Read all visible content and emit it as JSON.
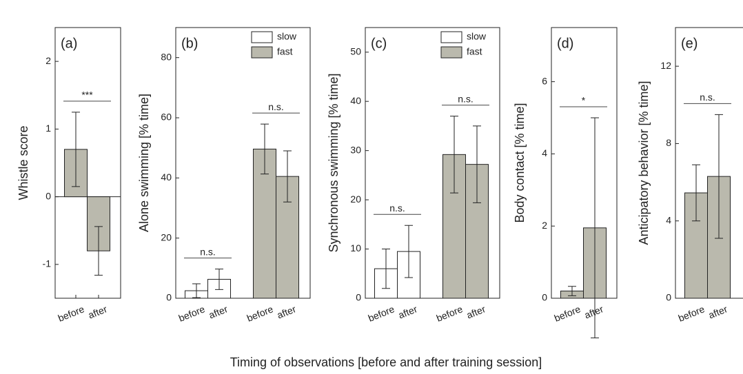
{
  "xlabel": "Timing of observations [before and after training session]",
  "chart_data": [
    {
      "type": "bar",
      "label": "(a)",
      "ylabel": "Whistle score",
      "categories": [
        "before",
        "after"
      ],
      "values": [
        0.7,
        -0.8
      ],
      "errors": [
        0.55,
        0.36
      ],
      "color": "#bab9ad",
      "ylim": [
        -1.5,
        2.5
      ],
      "yticks": [
        -1,
        0,
        1,
        2
      ],
      "zero_line": true,
      "annotations": [
        "***"
      ]
    },
    {
      "type": "bar",
      "label": "(b)",
      "ylabel": "Alone swimming  [% time]",
      "categories": [
        "before",
        "after",
        "before",
        "after"
      ],
      "series": [
        {
          "name": "slow",
          "color": "#ffffff",
          "values": [
            2.5,
            6.3,
            null,
            null
          ],
          "errors": [
            2.3,
            3.4,
            null,
            null
          ]
        },
        {
          "name": "fast",
          "color": "#bab9ad",
          "values": [
            null,
            null,
            49.6,
            40.5
          ],
          "errors": [
            null,
            null,
            8.3,
            8.5
          ]
        }
      ],
      "ylim": [
        0,
        90
      ],
      "yticks": [
        0,
        20,
        40,
        60,
        80
      ],
      "legend": "upper right",
      "annotations": [
        "n.s.",
        "n.s."
      ]
    },
    {
      "type": "bar",
      "label": "(c)",
      "ylabel": "Synchronous swimming  [% time]",
      "categories": [
        "before",
        "after",
        "before",
        "after"
      ],
      "series": [
        {
          "name": "slow",
          "color": "#ffffff",
          "values": [
            6,
            9.5,
            null,
            null
          ],
          "errors": [
            4,
            5.3,
            null,
            null
          ]
        },
        {
          "name": "fast",
          "color": "#bab9ad",
          "values": [
            null,
            null,
            29.2,
            27.2
          ],
          "errors": [
            null,
            null,
            7.8,
            7.8
          ]
        }
      ],
      "ylim": [
        0,
        55
      ],
      "yticks": [
        0,
        10,
        20,
        30,
        40,
        50
      ],
      "legend": "upper right",
      "annotations": [
        "n.s.",
        "n.s."
      ]
    },
    {
      "type": "bar",
      "label": "(d)",
      "ylabel": "Body contact  [% time]",
      "categories": [
        "before",
        "after"
      ],
      "values": [
        0.2,
        1.95
      ],
      "errors": [
        0.13,
        3.05
      ],
      "color": "#bab9ad",
      "ylim": [
        0,
        7.5
      ],
      "yticks": [
        0,
        2,
        4,
        6
      ],
      "annotations": [
        "*"
      ]
    },
    {
      "type": "bar",
      "label": "(e)",
      "ylabel": "Anticipatory behavior [% time]",
      "categories": [
        "before",
        "after"
      ],
      "values": [
        5.45,
        6.3
      ],
      "errors": [
        1.45,
        3.2
      ],
      "color": "#bab9ad",
      "ylim": [
        0,
        14
      ],
      "yticks": [
        0,
        4,
        8,
        12
      ],
      "annotations": [
        "n.s."
      ]
    }
  ]
}
